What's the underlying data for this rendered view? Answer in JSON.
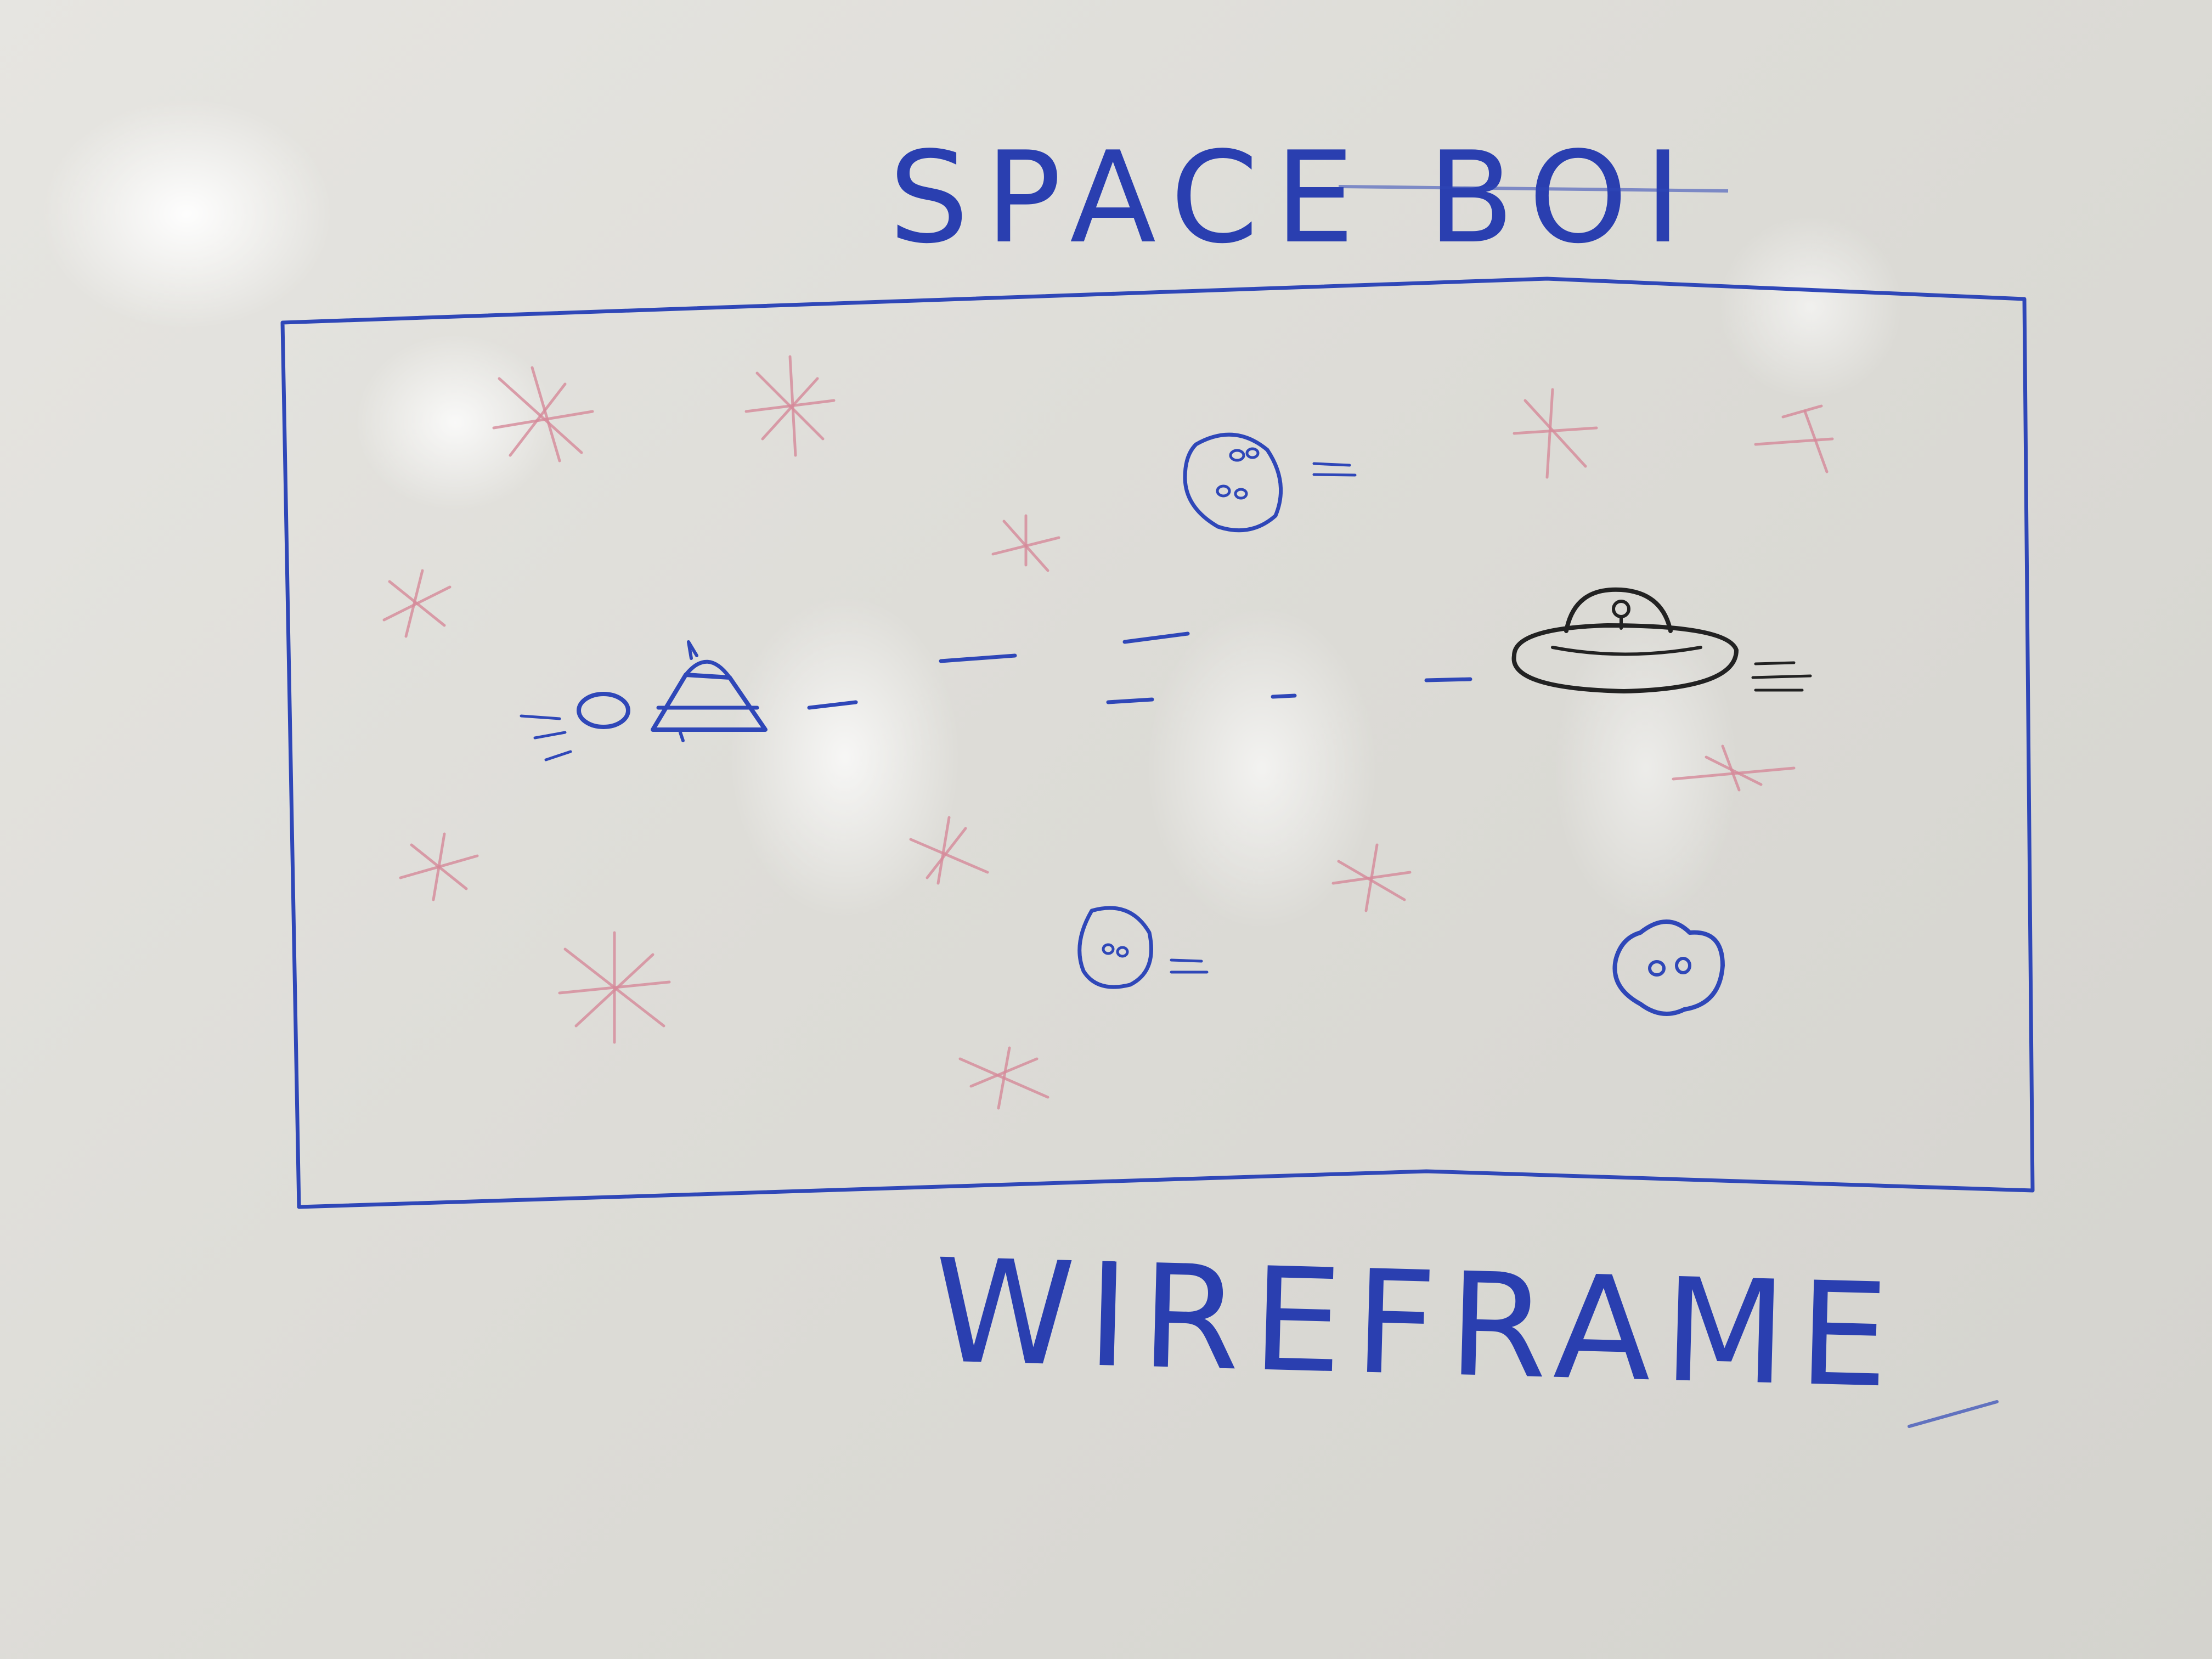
{
  "board": {
    "title": "SPACE BOI",
    "caption": "WIREFRAME"
  },
  "ink_colors": {
    "blue_marker": "#2f47b8",
    "pink_marker": "#d68a9a",
    "black_marker": "#222222"
  },
  "icons": {
    "player_ship": "small-spaceship-icon",
    "enemy_ship": "ufo-saucer-icon",
    "asteroid": "asteroid-face-icon",
    "star": "sparkle-star-icon"
  }
}
